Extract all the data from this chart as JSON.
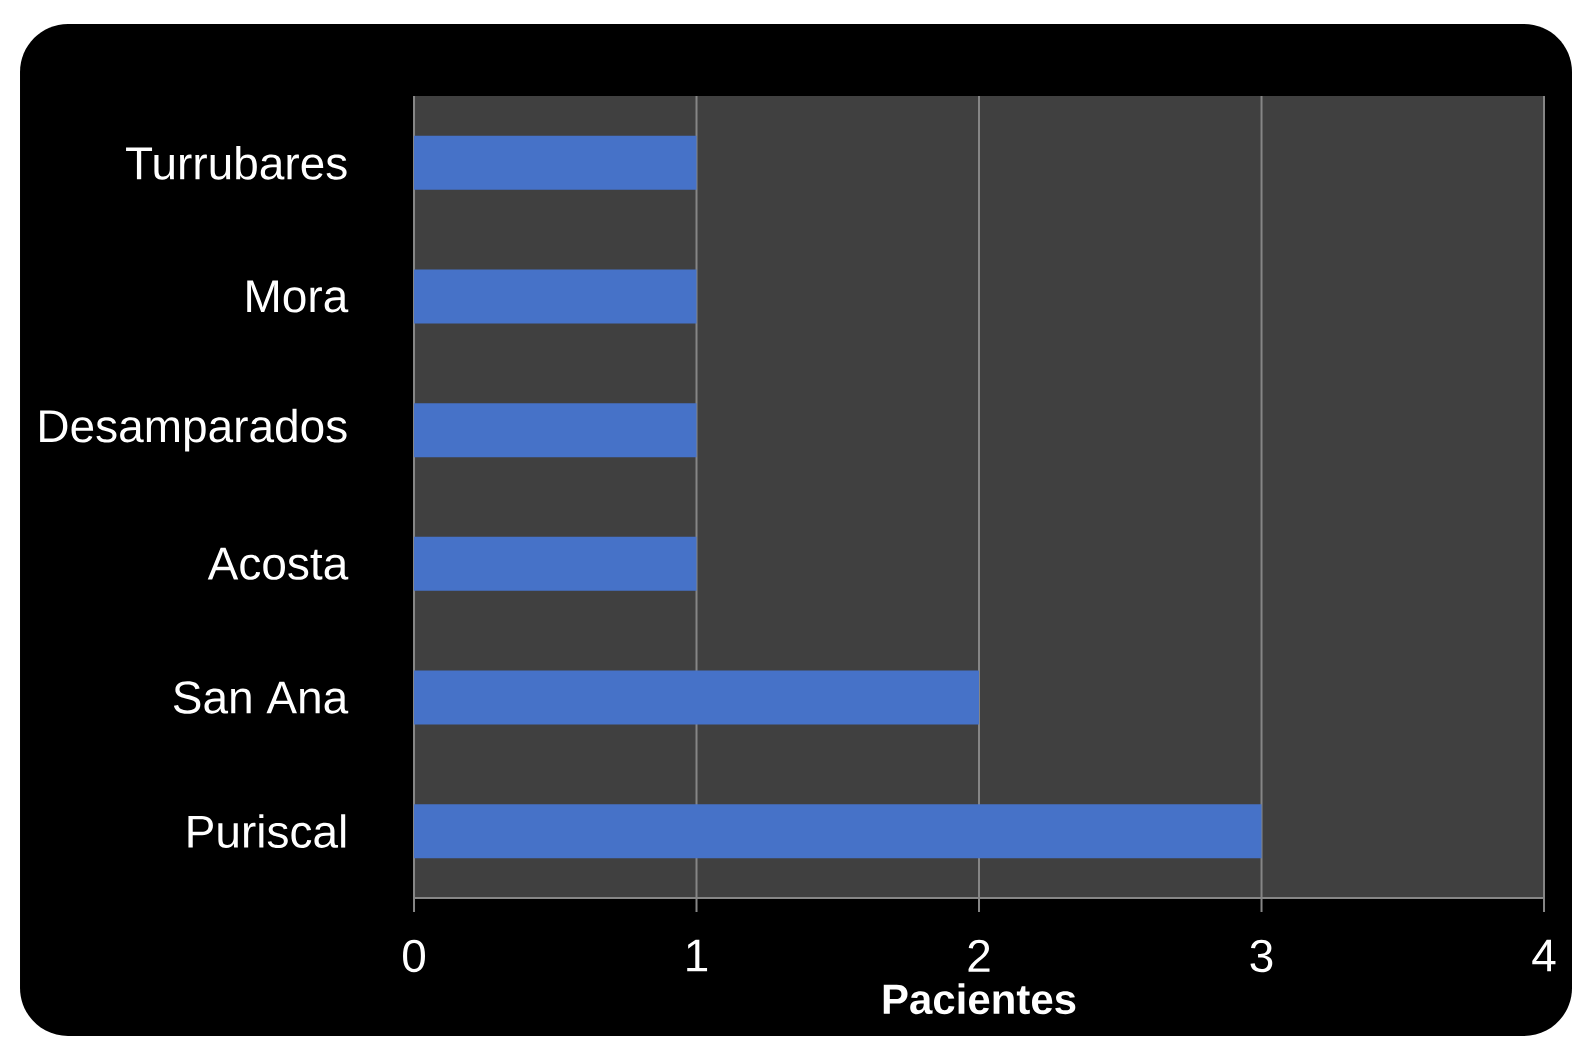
{
  "chart_data": {
    "type": "bar",
    "orientation": "horizontal",
    "categories": [
      "Turrubares",
      "Mora",
      "Desamparados",
      "Acosta",
      "San Ana",
      "Puriscal"
    ],
    "values": [
      1,
      1,
      1,
      1,
      2,
      3
    ],
    "color": "#4672c8",
    "xlabel": "Pacientes",
    "xlim": [
      0,
      4
    ],
    "xticks": [
      0,
      1,
      2,
      3,
      4
    ],
    "grid": "x"
  }
}
